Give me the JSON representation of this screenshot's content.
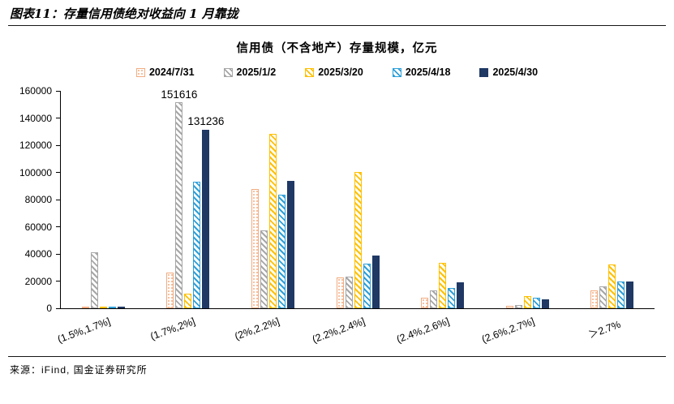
{
  "header": {
    "title": "图表11：存量信用债绝对收益向 1 月靠拢"
  },
  "footer": {
    "source": "来源：iFind, 国金证券研究所"
  },
  "chart_data": {
    "type": "bar",
    "title": "信用债（不含地产）存量规模，亿元",
    "categories": [
      "(1.5%,1.7%]",
      "(1.7%,2%]",
      "(2%,2.2%]",
      "(2.2%,2.4%]",
      "(2.4%,2.6%]",
      "(2.6%,2.7%]",
      "＞2.7%"
    ],
    "series": [
      {
        "name": "2024/7/31",
        "color": "#F2AC80",
        "pattern": "dots",
        "values": [
          300,
          26500,
          87500,
          22500,
          8000,
          2000,
          13000
        ]
      },
      {
        "name": "2025/1/2",
        "color": "#A6A6A6",
        "pattern": "hatch",
        "values": [
          41000,
          151616,
          57500,
          23500,
          13000,
          2500,
          16000
        ]
      },
      {
        "name": "2025/3/20",
        "color": "#FFC000",
        "pattern": "hatch",
        "values": [
          600,
          10500,
          128500,
          100500,
          33500,
          9000,
          32500
        ]
      },
      {
        "name": "2025/4/18",
        "color": "#2E9FD8",
        "pattern": "hatch",
        "values": [
          1000,
          93000,
          83500,
          33000,
          15000,
          7500,
          19500
        ]
      },
      {
        "name": "2025/4/30",
        "color": "#1F3864",
        "pattern": "solid",
        "values": [
          1300,
          131236,
          94000,
          39000,
          19000,
          6500,
          20000
        ]
      }
    ],
    "ylim": [
      0,
      160000
    ],
    "ytick_step": 20000,
    "legend_position": "top",
    "grid": false,
    "annotations": [
      {
        "series": 1,
        "category": 1,
        "text": "151616"
      },
      {
        "series": 4,
        "category": 1,
        "text": "131236"
      }
    ]
  }
}
